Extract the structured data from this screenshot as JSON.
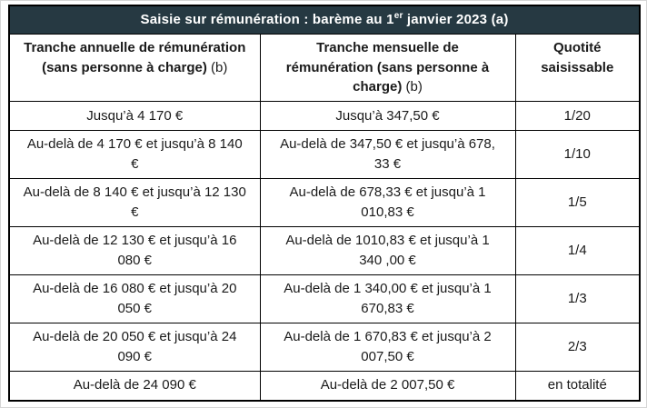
{
  "title": {
    "prefix": "Saisie sur rémunération : barème au 1",
    "superscript": "er",
    "suffix": " janvier 2023 (a)"
  },
  "colors": {
    "title_bar_bg": "#263942",
    "title_text": "#ffffff",
    "grid_border": "#000000",
    "body_text": "#1a1a1a",
    "background": "#ffffff"
  },
  "table": {
    "headers": [
      {
        "bold": "Tranche annuelle de rémunération (sans personne à charge)",
        "note": "(b)"
      },
      {
        "bold": "Tranche mensuelle de rémunération (sans personne à charge)",
        "note": "(b)"
      },
      {
        "bold": "Quotité saisissable",
        "note": ""
      }
    ],
    "rows": [
      [
        "Jusqu’à 4 170 €",
        "Jusqu’à 347,50 €",
        "1/20"
      ],
      [
        "Au-delà de 4 170 € et jusqu’à 8 140 €",
        "Au-delà de 347,50 € et jusqu’à 678, 33 €",
        "1/10"
      ],
      [
        "Au-delà de 8 140 € et jusqu’à 12 130 €",
        "Au-delà de 678,33 € et jusqu’à 1 010,83 €",
        "1/5"
      ],
      [
        "Au-delà de 12 130 € et jusqu’à 16 080 €",
        "Au-delà de 1010,83 € et jusqu’à 1 340 ,00 €",
        "1/4"
      ],
      [
        "Au-delà de 16 080 € et jusqu’à 20 050 €",
        "Au-delà de 1 340,00 € et jusqu’à 1 670,83 €",
        "1/3"
      ],
      [
        "Au-delà de 20 050 € et jusqu’à 24 090 €",
        "Au-delà de 1 670,83 € et jusqu’à 2 007,50 €",
        "2/3"
      ],
      [
        "Au-delà de 24 090 €",
        "Au-delà de 2 007,50 €",
        "en totalité"
      ]
    ]
  }
}
